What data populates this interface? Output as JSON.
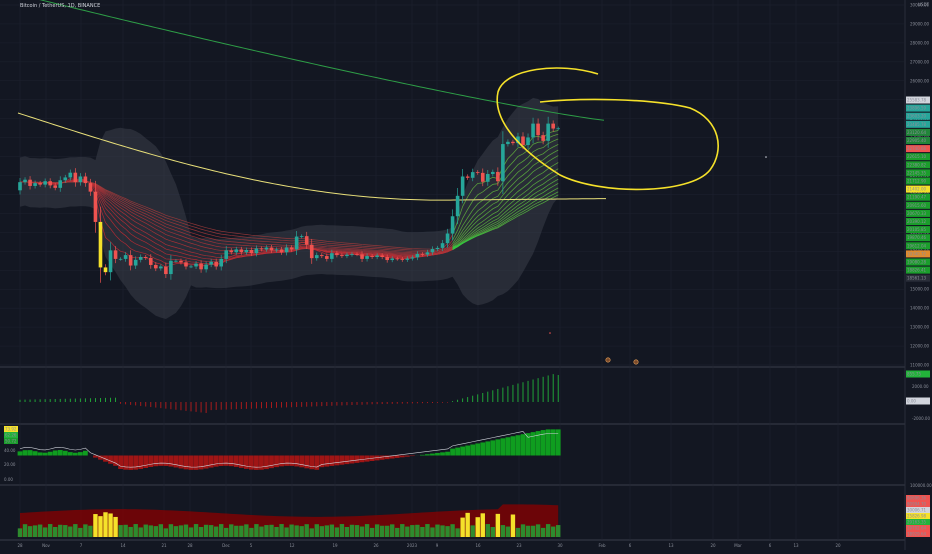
{
  "header": {
    "symbol_title": "Bitcoin / TetherUS, 1D, BINANCE",
    "currency": "USDT"
  },
  "colors": {
    "background": "#131722",
    "grid": "#1e2230",
    "candle_up": "#26a69a",
    "candle_down": "#ef5350",
    "ma200": "#2e9e47",
    "ma_yellow": "#e9e07a",
    "band_fill": "#434651",
    "highlight_yellow": "#f5e12a",
    "hist_up": "#22b33a",
    "hist_down": "#b71c1c",
    "rsi_line": "#d1d4dc",
    "volume_bar": "#2e8b2e",
    "volume_ma": "#8b0000"
  },
  "time_axis": {
    "labels": [
      "28",
      "Nov",
      "7",
      "14",
      "21",
      "28",
      "Dec",
      "5",
      "12",
      "19",
      "26",
      "2023",
      "9",
      "16",
      "23",
      "30",
      "Feb",
      "6",
      "13",
      "20",
      "Mar",
      "6",
      "13",
      "20"
    ]
  },
  "price_axis": {
    "labels": [
      "30000.00",
      "29000.00",
      "28000.00",
      "27000.00",
      "26000.00",
      "25000.00",
      "24000.00",
      "23000.00",
      "22000.00",
      "21000.00",
      "20000.00",
      "19000.00",
      "18000.00",
      "17000.00",
      "16000.00",
      "15000.00",
      "14000.00",
      "13000.00",
      "12000.00",
      "11000.00"
    ],
    "current_price": "23485.78"
  },
  "price_tags": [
    {
      "text": "25583.78",
      "color": "#131722",
      "bg": "#d1d4dc"
    },
    {
      "text": "23896.59",
      "color": "#131722",
      "bg": "#26a69a"
    },
    {
      "text": "23603.20",
      "color": "#d1d4dc",
      "bg": "#26a69a"
    },
    {
      "text": "23485.78",
      "color": "#d1d4dc",
      "bg": "#26a69a"
    },
    {
      "text": "23120.64",
      "color": "#d1d4dc",
      "bg": "#22863a"
    },
    {
      "text": "22905.40",
      "color": "#d1d4dc",
      "bg": "#22863a"
    },
    {
      "text": "22740.66",
      "color": "#d1d4dc",
      "bg": "#ef5350"
    },
    {
      "text": "22615.10",
      "color": "#d1d4dc",
      "bg": "#1b9e2c"
    },
    {
      "text": "22380.82",
      "color": "#d1d4dc",
      "bg": "#1b9e2c"
    },
    {
      "text": "22145.35",
      "color": "#d1d4dc",
      "bg": "#1b9e2c"
    },
    {
      "text": "21712.90",
      "color": "#d1d4dc",
      "bg": "#1b9e2c"
    },
    {
      "text": "21402.00",
      "color": "#131722",
      "bg": "#f5e12a"
    },
    {
      "text": "21190.47",
      "color": "#d1d4dc",
      "bg": "#1b9e2c"
    },
    {
      "text": "20915.60",
      "color": "#d1d4dc",
      "bg": "#1b9e2c"
    },
    {
      "text": "20670.33",
      "color": "#d1d4dc",
      "bg": "#1b9e2c"
    },
    {
      "text": "20390.12",
      "color": "#d1d4dc",
      "bg": "#1b9e2c"
    },
    {
      "text": "20105.85",
      "color": "#d1d4dc",
      "bg": "#1b9e2c"
    },
    {
      "text": "19870.46",
      "color": "#d1d4dc",
      "bg": "#1b9e2c"
    },
    {
      "text": "19612.04",
      "color": "#d1d4dc",
      "bg": "#1b9e2c"
    },
    {
      "text": "19340.72",
      "color": "#131722",
      "bg": "#e08b2e"
    },
    {
      "text": "19080.28",
      "color": "#d1d4dc",
      "bg": "#1b9e2c"
    },
    {
      "text": "18826.41",
      "color": "#d1d4dc",
      "bg": "#1b9e2c"
    },
    {
      "text": "18561.13",
      "color": "#d1d4dc",
      "bg": "#2a2e39"
    }
  ],
  "macd_axis": {
    "labels": [
      "2000.00",
      "0.00",
      "-2000.00"
    ],
    "tags": [
      {
        "text": "855.75",
        "bg": "#22b33a"
      },
      {
        "text": "0.00",
        "bg": "#d1d4dc"
      }
    ]
  },
  "rsi_axis": {
    "labels": [
      "60.00",
      "40.00",
      "20.00",
      "0.00"
    ],
    "tags": [
      {
        "text": "73.92",
        "bg": "#f5e12a"
      },
      {
        "text": "62.26",
        "bg": "#22b33a"
      },
      {
        "text": "50.72",
        "bg": "#1b9e2c"
      }
    ]
  },
  "volume_axis": {
    "labels": [
      "100000.00",
      "50000.00"
    ],
    "tags": [
      {
        "text": "80696.36",
        "bg": "#ef5350"
      },
      {
        "text": "80994.70",
        "bg": "#ef5350"
      },
      {
        "text": "30006.71",
        "bg": "#d1d4dc"
      },
      {
        "text": "25826.98",
        "bg": "#f5e12a"
      },
      {
        "text": "29163.35",
        "bg": "#22b33a"
      },
      {
        "text": "19702.64",
        "bg": "#ef5350"
      },
      {
        "text": "18929.64",
        "bg": "#ef5350"
      }
    ]
  },
  "chart_data": [
    {
      "type": "candlestick",
      "title": "Bitcoin / TetherUS, 1D, BINANCE",
      "y_unit": "USDT",
      "ylim": [
        11000,
        30000
      ],
      "candles": [
        [
          20220,
          20650
        ],
        [
          20650,
          20780
        ],
        [
          20780,
          20450
        ],
        [
          20450,
          20600
        ],
        [
          20600,
          20520
        ],
        [
          20520,
          20700
        ],
        [
          20700,
          20480
        ],
        [
          20480,
          20350
        ],
        [
          20350,
          20750
        ],
        [
          20750,
          20900
        ],
        [
          20900,
          21150
        ],
        [
          21150,
          20650
        ],
        [
          20650,
          20950
        ],
        [
          20950,
          20600
        ],
        [
          20600,
          20150
        ],
        [
          20150,
          18550
        ],
        [
          18550,
          16150
        ],
        [
          16150,
          15900
        ],
        [
          15900,
          17050
        ],
        [
          17050,
          16600
        ],
        [
          16600,
          16600
        ],
        [
          16600,
          16800
        ],
        [
          16800,
          16250
        ],
        [
          16250,
          16550
        ],
        [
          16550,
          16700
        ],
        [
          16700,
          16650
        ],
        [
          16650,
          16280
        ],
        [
          16280,
          16100
        ],
        [
          16100,
          16200
        ],
        [
          16200,
          15800
        ],
        [
          15800,
          16500
        ],
        [
          16500,
          16500
        ],
        [
          16500,
          16420
        ],
        [
          16420,
          16200
        ],
        [
          16200,
          16200
        ],
        [
          16200,
          16350
        ],
        [
          16350,
          16050
        ],
        [
          16050,
          16300
        ],
        [
          16300,
          16450
        ],
        [
          16450,
          16200
        ],
        [
          16200,
          16600
        ],
        [
          16600,
          17050
        ],
        [
          17050,
          16950
        ],
        [
          16950,
          17100
        ],
        [
          17100,
          16950
        ],
        [
          16950,
          17070
        ],
        [
          17070,
          16900
        ],
        [
          16900,
          17150
        ],
        [
          17150,
          17100
        ],
        [
          17100,
          17200
        ],
        [
          17200,
          17050
        ],
        [
          17050,
          17100
        ],
        [
          17100,
          16950
        ],
        [
          16950,
          17200
        ],
        [
          17200,
          17100
        ],
        [
          17100,
          17780
        ],
        [
          17780,
          17800
        ],
        [
          17800,
          17350
        ],
        [
          17350,
          16640
        ],
        [
          16640,
          16800
        ],
        [
          16800,
          16750
        ],
        [
          16750,
          16600
        ],
        [
          16600,
          16900
        ],
        [
          16900,
          16800
        ],
        [
          16800,
          16750
        ],
        [
          16750,
          16820
        ],
        [
          16820,
          16850
        ],
        [
          16850,
          16840
        ],
        [
          16840,
          16600
        ],
        [
          16600,
          16750
        ],
        [
          16750,
          16700
        ],
        [
          16700,
          16780
        ],
        [
          16780,
          16700
        ],
        [
          16700,
          16540
        ],
        [
          16540,
          16620
        ],
        [
          16620,
          16600
        ],
        [
          16600,
          16550
        ],
        [
          16550,
          16620
        ],
        [
          16620,
          16680
        ],
        [
          16680,
          16860
        ],
        [
          16860,
          16830
        ],
        [
          16830,
          16950
        ],
        [
          16950,
          17120
        ],
        [
          17120,
          17180
        ],
        [
          17180,
          17430
        ],
        [
          17430,
          17940
        ],
        [
          17940,
          18850
        ],
        [
          18850,
          19930
        ],
        [
          19930,
          20950
        ],
        [
          20950,
          20880
        ],
        [
          20880,
          21180
        ],
        [
          21180,
          21140
        ],
        [
          21140,
          20670
        ],
        [
          20670,
          21080
        ],
        [
          21080,
          21190
        ],
        [
          21190,
          20700
        ],
        [
          20700,
          22660
        ],
        [
          22660,
          22780
        ],
        [
          22780,
          22710
        ],
        [
          22710,
          23060
        ],
        [
          23060,
          22610
        ],
        [
          22610,
          23010
        ],
        [
          23010,
          23740
        ],
        [
          23740,
          23130
        ],
        [
          23130,
          22830
        ],
        [
          22830,
          23740
        ],
        [
          23740,
          23480
        ],
        [
          23480,
          23490
        ]
      ],
      "ma200_start": 30800,
      "ma200_end": 23900,
      "ma_yellow_start": 24300,
      "ma_yellow_end": 19800,
      "macd_histogram": {
        "last": 855.75,
        "range": [
          -2000,
          3000
        ]
      },
      "rsi": {
        "last": 73.92,
        "range": [
          0,
          80
        ]
      },
      "volume": {
        "last": 25826.98,
        "range": [
          0,
          100000
        ]
      }
    }
  ]
}
